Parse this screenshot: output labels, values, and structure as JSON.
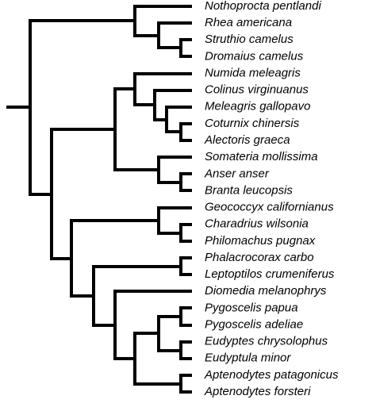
{
  "leaves": [
    "Nothoprocta pentlandi",
    "Rhea americana",
    "Struthio camelus",
    "Dromaius camelus",
    "Numida meleagris",
    "Colinus virginuanus",
    "Meleagris gallopavo",
    "Coturnix chinersis",
    "Alectoris graeca",
    "Somateria mollissima",
    "Anser anser",
    "Branta leucopsis",
    "Geococcyx californianus",
    "Charadrius wilsonia",
    "Philomachus pugnax",
    "Phalacrocorax carbo",
    "Leptoptilos crumeniferus",
    "Diomedia melanophrys",
    "Pygoscelis papua",
    "Pygoscelis adeliae",
    "Eudyptes chrysolophus",
    "Eudyptula minor",
    "Aptenodytes patagonicus",
    "Aptenodytes forsteri"
  ]
}
